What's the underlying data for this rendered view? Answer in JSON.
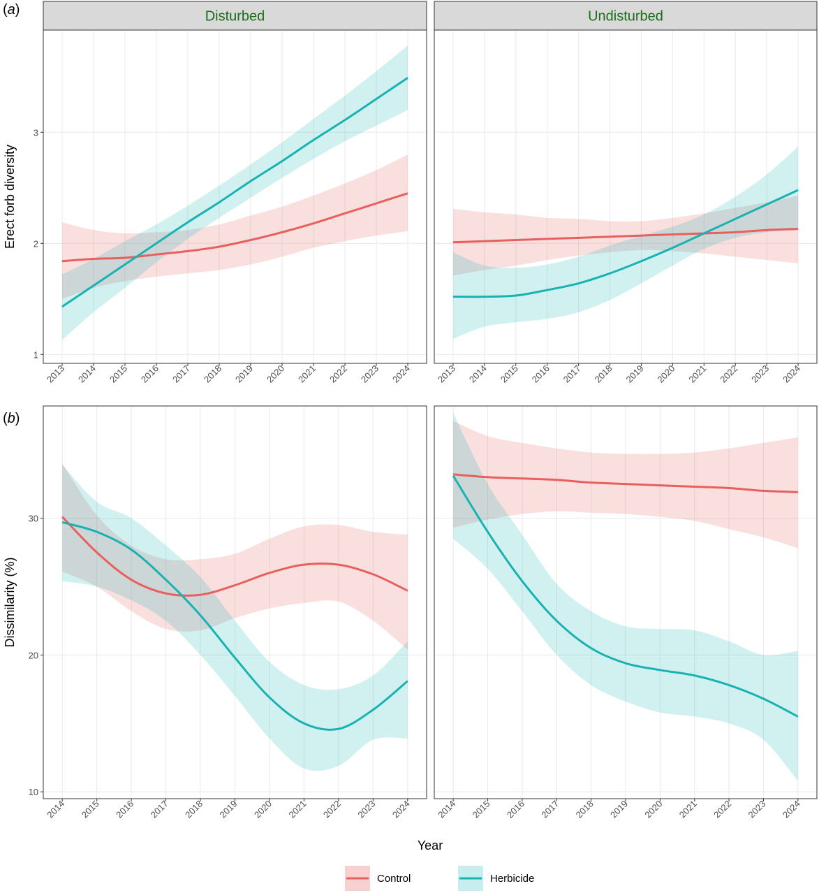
{
  "chart_data": {
    "type": "line",
    "legend": {
      "placement": "bottom",
      "entries": [
        {
          "key": "control",
          "label": "Control",
          "color": "#E8605E",
          "ribbon": "#F9D0D0"
        },
        {
          "key": "herbicide",
          "label": "Herbicide",
          "color": "#19B2B2",
          "ribbon": "#C7EDEE"
        }
      ]
    },
    "xlabel": "Year",
    "facets": [
      "Disturbed",
      "Undisturbed"
    ],
    "rows": [
      {
        "tag_prefix": "(",
        "tag_letter": "a",
        "tag_suffix": ")",
        "ylabel": "Erect forb diversity",
        "ylim": [
          0.92,
          3.92
        ],
        "yticks": [
          "1",
          "2",
          "3"
        ],
        "xlim": [
          2012.4,
          2024.6
        ],
        "xticks": [
          "2013",
          "2014",
          "2015",
          "2016",
          "2017",
          "2018",
          "2019",
          "2020",
          "2021",
          "2022",
          "2023",
          "2024"
        ],
        "panels": [
          {
            "facet": "Disturbed",
            "series": [
              {
                "name": "Control",
                "x": [
                  2013,
                  2014,
                  2015,
                  2016,
                  2017,
                  2018,
                  2019,
                  2020,
                  2021,
                  2022,
                  2023,
                  2024
                ],
                "y": [
                  1.84,
                  1.86,
                  1.87,
                  1.9,
                  1.93,
                  1.97,
                  2.03,
                  2.1,
                  2.18,
                  2.27,
                  2.36,
                  2.45
                ],
                "lower": [
                  1.5,
                  1.6,
                  1.66,
                  1.7,
                  1.73,
                  1.76,
                  1.81,
                  1.88,
                  1.96,
                  2.02,
                  2.07,
                  2.11
                ],
                "upper": [
                  2.19,
                  2.12,
                  2.09,
                  2.1,
                  2.12,
                  2.17,
                  2.25,
                  2.33,
                  2.43,
                  2.54,
                  2.66,
                  2.8
                ]
              },
              {
                "name": "Herbicide",
                "x": [
                  2013,
                  2014,
                  2015,
                  2016,
                  2017,
                  2018,
                  2019,
                  2020,
                  2021,
                  2022,
                  2023,
                  2024
                ],
                "y": [
                  1.43,
                  1.62,
                  1.81,
                  2.0,
                  2.19,
                  2.37,
                  2.56,
                  2.74,
                  2.93,
                  3.11,
                  3.3,
                  3.49
                ],
                "lower": [
                  1.13,
                  1.38,
                  1.6,
                  1.83,
                  2.04,
                  2.23,
                  2.41,
                  2.59,
                  2.76,
                  2.92,
                  3.06,
                  3.2
                ],
                "upper": [
                  1.72,
                  1.86,
                  2.02,
                  2.17,
                  2.34,
                  2.52,
                  2.71,
                  2.91,
                  3.12,
                  3.33,
                  3.55,
                  3.78
                ]
              }
            ]
          },
          {
            "facet": "Undisturbed",
            "series": [
              {
                "name": "Control",
                "x": [
                  2013,
                  2014,
                  2015,
                  2016,
                  2017,
                  2018,
                  2019,
                  2020,
                  2021,
                  2022,
                  2023,
                  2024
                ],
                "y": [
                  2.01,
                  2.02,
                  2.03,
                  2.04,
                  2.05,
                  2.06,
                  2.07,
                  2.08,
                  2.09,
                  2.1,
                  2.12,
                  2.13
                ],
                "lower": [
                  1.71,
                  1.76,
                  1.8,
                  1.85,
                  1.89,
                  1.92,
                  1.94,
                  1.93,
                  1.91,
                  1.88,
                  1.85,
                  1.82
                ],
                "upper": [
                  2.31,
                  2.28,
                  2.26,
                  2.23,
                  2.22,
                  2.2,
                  2.2,
                  2.23,
                  2.27,
                  2.32,
                  2.37,
                  2.43
                ]
              },
              {
                "name": "Herbicide",
                "x": [
                  2013,
                  2014,
                  2015,
                  2016,
                  2017,
                  2018,
                  2019,
                  2020,
                  2021,
                  2022,
                  2023,
                  2024
                ],
                "y": [
                  1.52,
                  1.52,
                  1.53,
                  1.58,
                  1.64,
                  1.73,
                  1.84,
                  1.96,
                  2.09,
                  2.22,
                  2.35,
                  2.48
                ],
                "lower": [
                  1.14,
                  1.25,
                  1.29,
                  1.32,
                  1.38,
                  1.49,
                  1.64,
                  1.8,
                  1.95,
                  2.05,
                  2.1,
                  2.12
                ],
                "upper": [
                  1.92,
                  1.8,
                  1.78,
                  1.81,
                  1.88,
                  1.98,
                  2.07,
                  2.15,
                  2.26,
                  2.42,
                  2.62,
                  2.87
                ]
              }
            ]
          }
        ]
      },
      {
        "tag_prefix": "(",
        "tag_letter": "b",
        "tag_suffix": ")",
        "ylabel": "Dissimilarity (%)",
        "ylim": [
          9.5,
          38.2
        ],
        "yticks": [
          "10",
          "20",
          "30"
        ],
        "xlim": [
          2013.45,
          2024.55
        ],
        "xticks": [
          "2014",
          "2015",
          "2016",
          "2017",
          "2018",
          "2019",
          "2020",
          "2021",
          "2022",
          "2023",
          "2024"
        ],
        "panels": [
          {
            "facet": "Disturbed",
            "series": [
              {
                "name": "Control",
                "x": [
                  2014,
                  2015,
                  2016,
                  2017,
                  2018,
                  2019,
                  2020,
                  2021,
                  2022,
                  2023,
                  2024
                ],
                "y": [
                  30.1,
                  27.5,
                  25.5,
                  24.5,
                  24.4,
                  25.1,
                  26.0,
                  26.6,
                  26.6,
                  25.9,
                  24.7
                ],
                "lower": [
                  26.1,
                  25.0,
                  23.2,
                  21.9,
                  21.8,
                  22.7,
                  23.4,
                  23.8,
                  23.9,
                  22.5,
                  20.4
                ],
                "upper": [
                  34.0,
                  30.2,
                  28.0,
                  27.0,
                  27.0,
                  27.4,
                  28.5,
                  29.4,
                  29.5,
                  29.0,
                  28.8
                ]
              },
              {
                "name": "Herbicide",
                "x": [
                  2014,
                  2015,
                  2016,
                  2017,
                  2018,
                  2019,
                  2020,
                  2021,
                  2022,
                  2023,
                  2024
                ],
                "y": [
                  29.7,
                  29.0,
                  27.7,
                  25.5,
                  22.9,
                  19.8,
                  16.9,
                  15.0,
                  14.6,
                  16.0,
                  18.1
                ],
                "lower": [
                  25.4,
                  25.0,
                  24.0,
                  22.5,
                  20.0,
                  17.0,
                  13.9,
                  11.7,
                  11.9,
                  13.8,
                  13.9
                ],
                "upper": [
                  33.9,
                  31.2,
                  30.0,
                  28.0,
                  25.7,
                  22.5,
                  19.5,
                  17.8,
                  17.5,
                  18.5,
                  21.0
                ]
              }
            ]
          },
          {
            "facet": "Undisturbed",
            "series": [
              {
                "name": "Control",
                "x": [
                  2014,
                  2015,
                  2016,
                  2017,
                  2018,
                  2019,
                  2020,
                  2021,
                  2022,
                  2023,
                  2024
                ],
                "y": [
                  33.2,
                  33.0,
                  32.9,
                  32.8,
                  32.6,
                  32.5,
                  32.4,
                  32.3,
                  32.2,
                  32.0,
                  31.9
                ],
                "lower": [
                  29.3,
                  29.9,
                  30.3,
                  30.5,
                  30.4,
                  30.3,
                  30.1,
                  29.8,
                  29.2,
                  28.6,
                  27.8
                ],
                "upper": [
                  37.1,
                  36.0,
                  35.5,
                  35.1,
                  34.8,
                  34.7,
                  34.7,
                  34.8,
                  35.1,
                  35.5,
                  35.9
                ]
              },
              {
                "name": "Herbicide",
                "x": [
                  2014,
                  2015,
                  2016,
                  2017,
                  2018,
                  2019,
                  2020,
                  2021,
                  2022,
                  2023,
                  2024
                ],
                "y": [
                  33.1,
                  29.0,
                  25.4,
                  22.5,
                  20.5,
                  19.4,
                  18.9,
                  18.5,
                  17.8,
                  16.8,
                  15.5
                ],
                "lower": [
                  28.5,
                  26.3,
                  23.2,
                  20.0,
                  17.8,
                  16.6,
                  15.8,
                  15.5,
                  15.0,
                  13.8,
                  10.8
                ],
                "upper": [
                  37.7,
                  32.5,
                  28.8,
                  25.2,
                  23.2,
                  22.1,
                  21.9,
                  21.8,
                  21.0,
                  20.0,
                  20.3
                ]
              }
            ]
          }
        ]
      }
    ]
  }
}
